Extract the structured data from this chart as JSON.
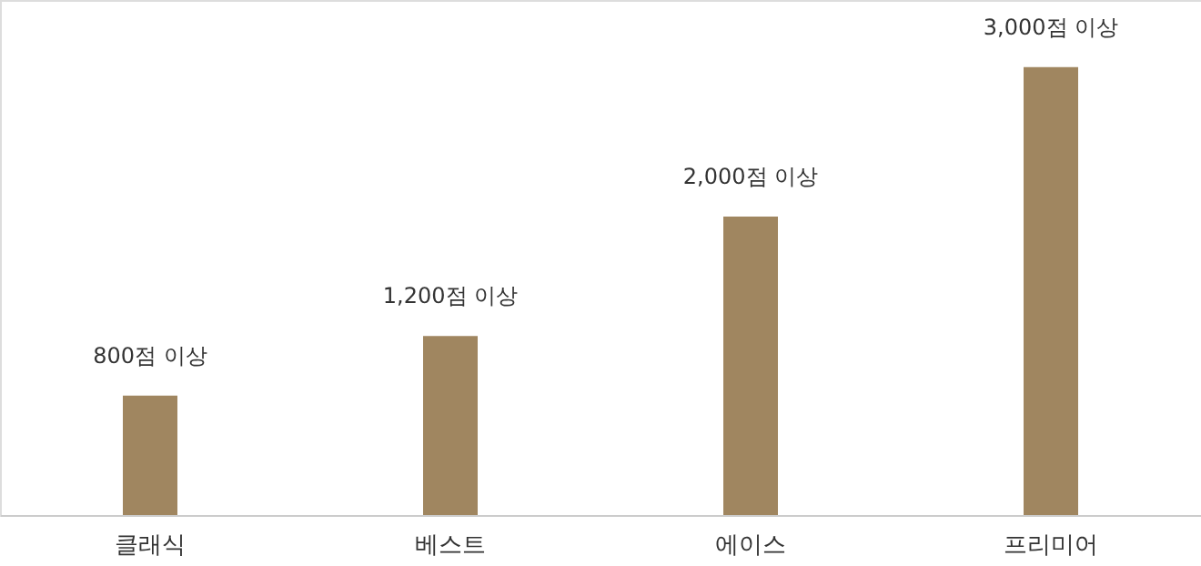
{
  "chart_data": {
    "type": "bar",
    "categories": [
      "클래식",
      "베스트",
      "에이스",
      "프리미어"
    ],
    "values": [
      800,
      1200,
      2000,
      3000
    ],
    "value_labels": [
      "800점 이상",
      "1,200점 이상",
      "2,000점 이상",
      "3,000점 이상"
    ],
    "color": "#a08660",
    "grid": false
  }
}
